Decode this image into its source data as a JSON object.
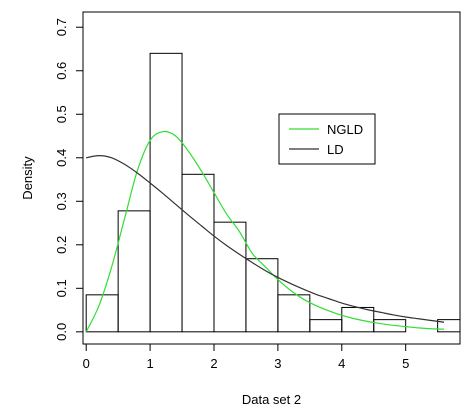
{
  "chart_data": {
    "type": "histogram",
    "title": "",
    "xlabel": "Data set 2",
    "ylabel": "Density",
    "xlim": [
      -0.05,
      5.85
    ],
    "ylim": [
      -0.028,
      0.735
    ],
    "xticks": [
      0,
      1,
      2,
      3,
      4,
      5
    ],
    "yticks": [
      0.0,
      0.1,
      0.2,
      0.3,
      0.4,
      0.5,
      0.6,
      0.7
    ],
    "ytick_labels": [
      "0.0",
      "0.1",
      "0.2",
      "0.3",
      "0.4",
      "0.5",
      "0.6",
      "0.7"
    ],
    "grid": false,
    "legend_position": "right",
    "bins": [
      {
        "x0": 0.0,
        "x1": 0.5,
        "density": 0.085
      },
      {
        "x0": 0.5,
        "x1": 1.0,
        "density": 0.278
      },
      {
        "x0": 1.0,
        "x1": 1.5,
        "density": 0.64
      },
      {
        "x0": 1.5,
        "x1": 2.0,
        "density": 0.362
      },
      {
        "x0": 2.0,
        "x1": 2.5,
        "density": 0.252
      },
      {
        "x0": 2.5,
        "x1": 3.0,
        "density": 0.168
      },
      {
        "x0": 3.0,
        "x1": 3.5,
        "density": 0.085
      },
      {
        "x0": 3.5,
        "x1": 4.0,
        "density": 0.028
      },
      {
        "x0": 4.0,
        "x1": 4.5,
        "density": 0.056
      },
      {
        "x0": 4.5,
        "x1": 5.0,
        "density": 0.028
      },
      {
        "x0": 5.0,
        "x1": 5.5,
        "density": 0.0
      },
      {
        "x0": 5.5,
        "x1": 6.0,
        "density": 0.028
      }
    ],
    "series": [
      {
        "name": "NGLD",
        "color": "#33dd33",
        "x": [
          0.0,
          0.2,
          0.4,
          0.6,
          0.8,
          1.0,
          1.2,
          1.4,
          1.6,
          1.8,
          2.0,
          2.2,
          2.4,
          2.6,
          2.8,
          3.0,
          3.2,
          3.4,
          3.6,
          3.8,
          4.0,
          4.2,
          4.4,
          4.6,
          4.8,
          5.0,
          5.2,
          5.4,
          5.6
        ],
        "y": [
          0.0,
          0.06,
          0.15,
          0.26,
          0.37,
          0.44,
          0.46,
          0.45,
          0.415,
          0.37,
          0.32,
          0.27,
          0.23,
          0.18,
          0.15,
          0.12,
          0.095,
          0.075,
          0.06,
          0.048,
          0.038,
          0.03,
          0.024,
          0.019,
          0.015,
          0.012,
          0.009,
          0.007,
          0.006
        ]
      },
      {
        "name": "LD",
        "color": "#333333",
        "x": [
          0.0,
          0.2,
          0.4,
          0.6,
          0.8,
          1.0,
          1.2,
          1.4,
          1.6,
          1.8,
          2.0,
          2.2,
          2.4,
          2.6,
          2.8,
          3.0,
          3.2,
          3.4,
          3.6,
          3.8,
          4.0,
          4.2,
          4.4,
          4.6,
          4.8,
          5.0,
          5.2,
          5.4,
          5.6
        ],
        "y": [
          0.4,
          0.405,
          0.4,
          0.385,
          0.365,
          0.342,
          0.318,
          0.293,
          0.268,
          0.244,
          0.22,
          0.198,
          0.178,
          0.159,
          0.141,
          0.125,
          0.111,
          0.098,
          0.086,
          0.076,
          0.066,
          0.058,
          0.051,
          0.045,
          0.039,
          0.034,
          0.03,
          0.026,
          0.022
        ]
      }
    ]
  }
}
